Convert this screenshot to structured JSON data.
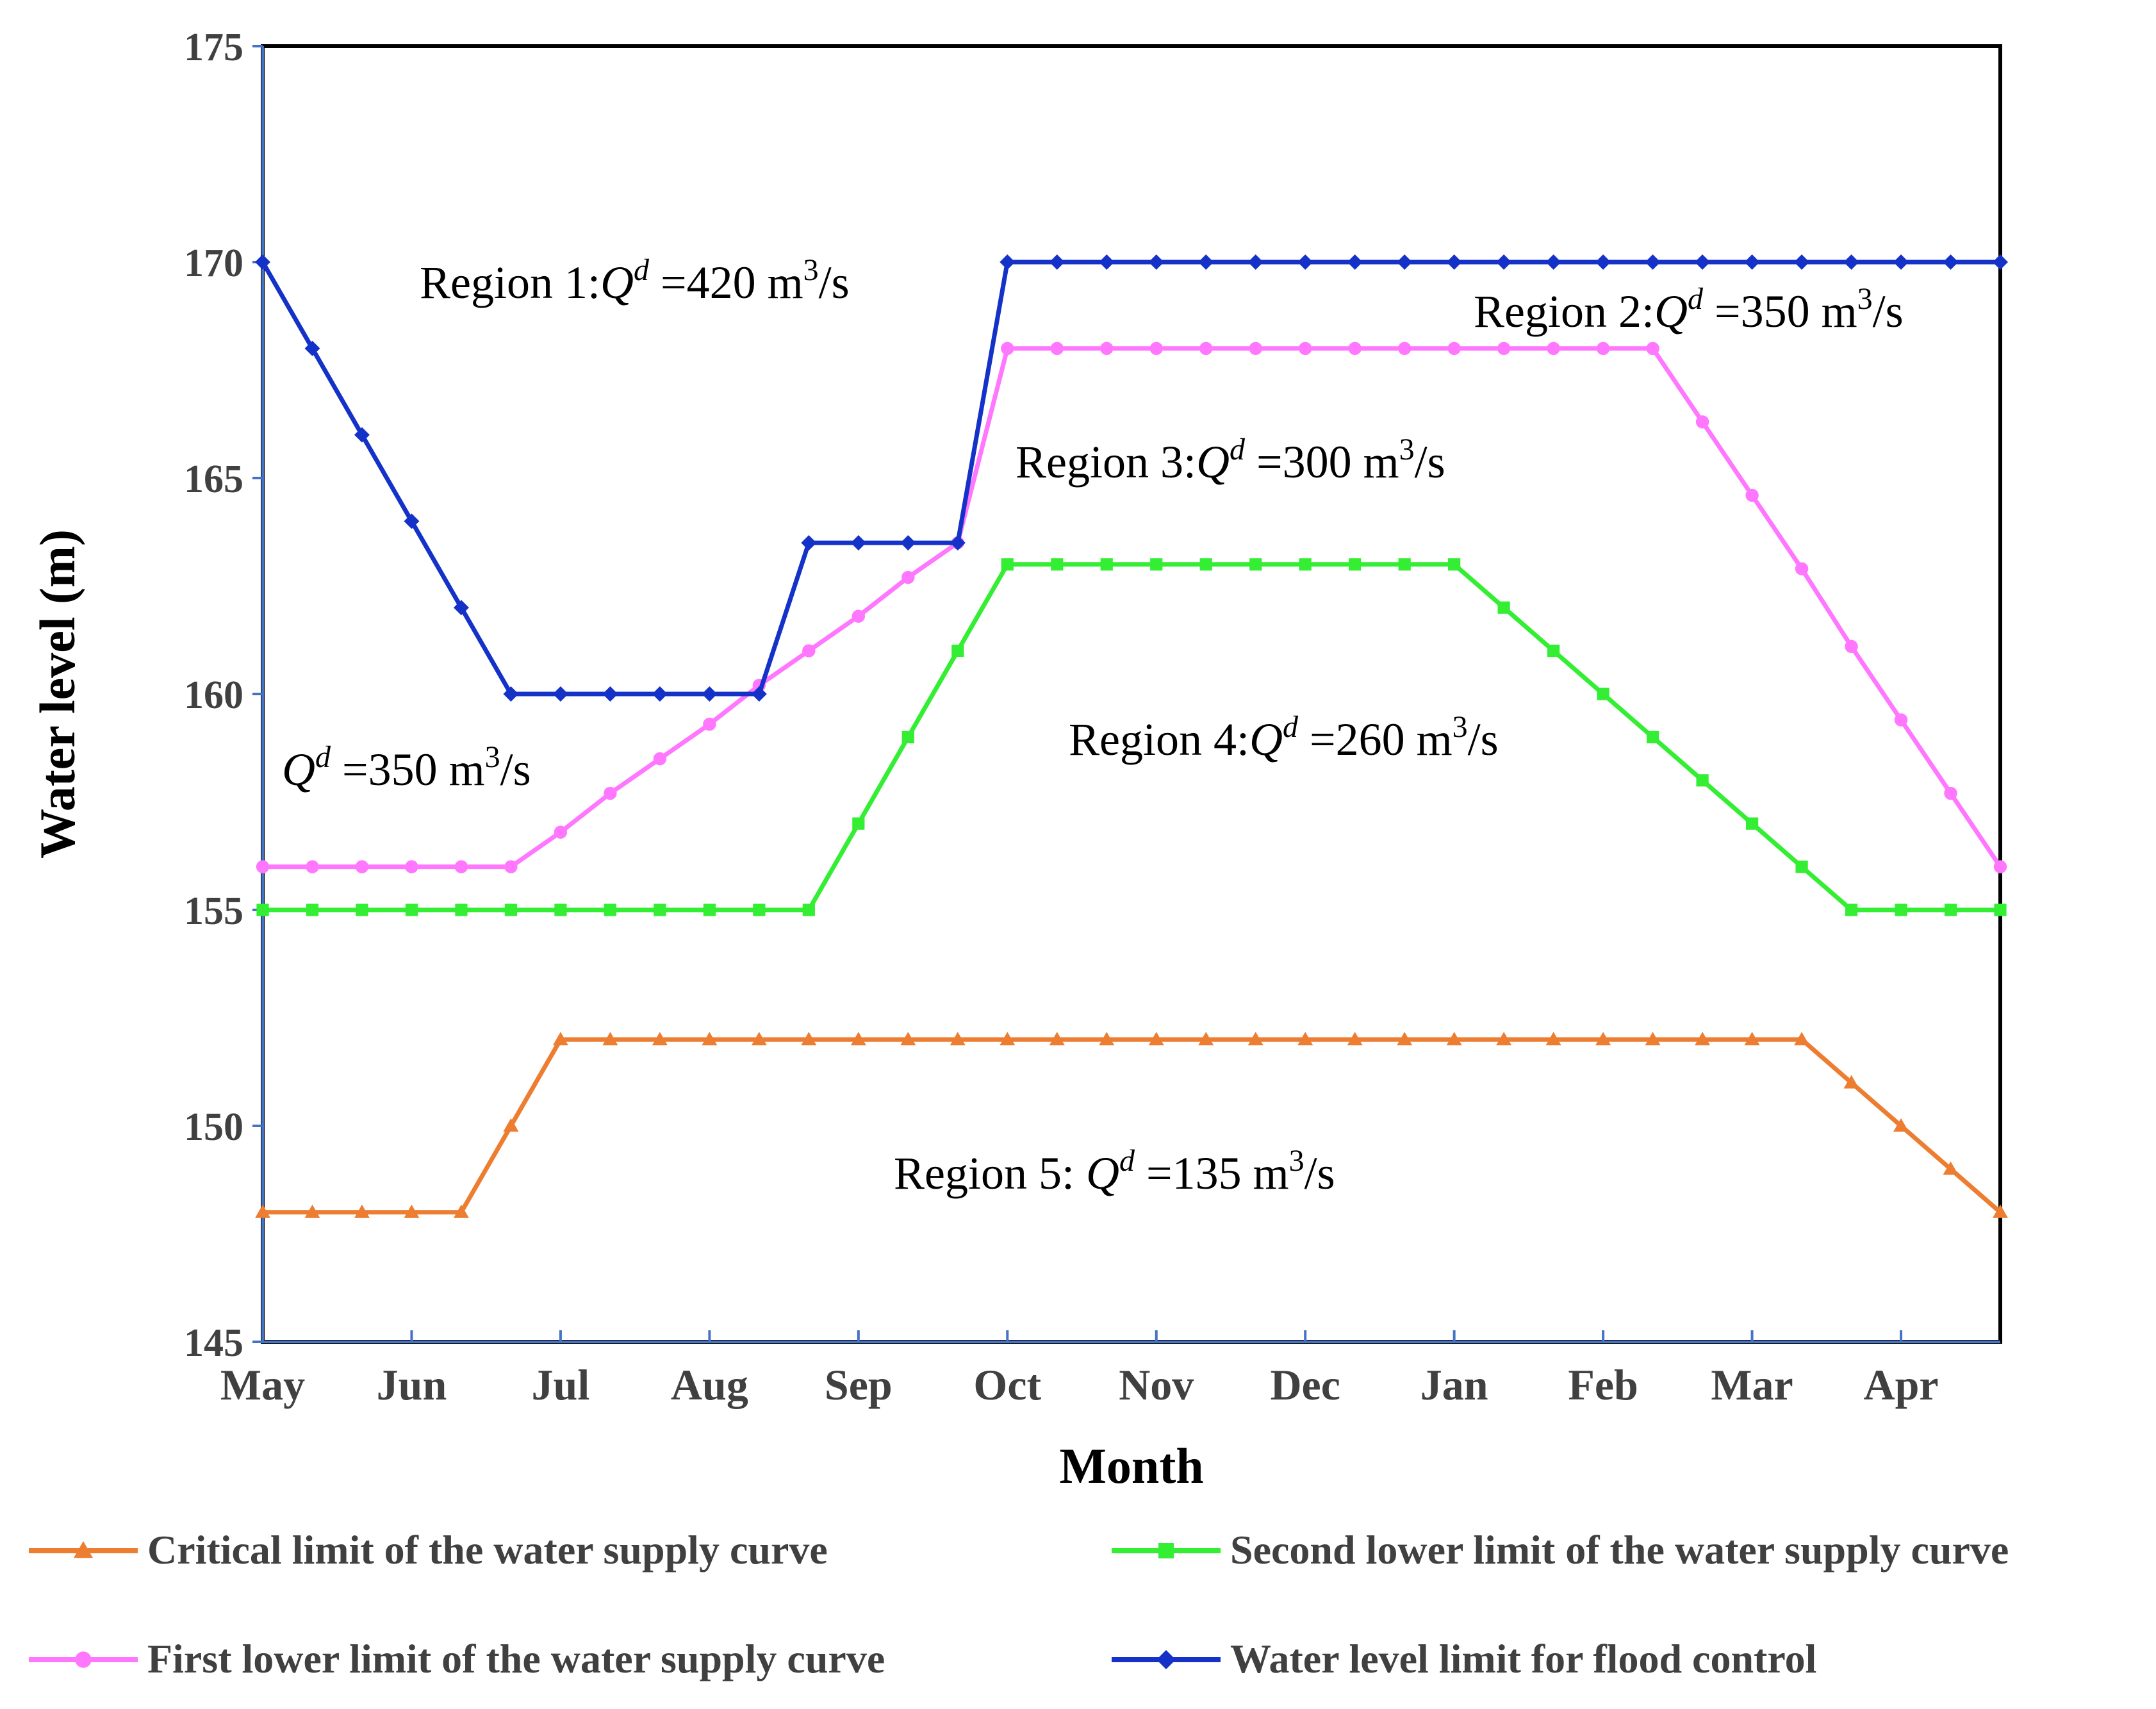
{
  "chart_data": {
    "type": "line",
    "title": "",
    "xlabel": "Month",
    "ylabel": "Water level (m)",
    "ylim": [
      145,
      175
    ],
    "yticks": [
      "145",
      "150",
      "155",
      "160",
      "165",
      "170",
      "175"
    ],
    "xlim": [
      0,
      35
    ],
    "categories": [
      "May",
      "Jun",
      "Jul",
      "Aug",
      "Sep",
      "Oct",
      "Nov",
      "Dec",
      "Jan",
      "Feb",
      "Mar",
      "Apr"
    ],
    "category_positions": [
      0,
      3,
      6,
      9,
      12,
      15,
      18,
      21,
      24,
      27,
      30,
      33
    ],
    "x": [
      0,
      1,
      2,
      3,
      4,
      5,
      6,
      7,
      8,
      9,
      10,
      11,
      12,
      13,
      14,
      15,
      16,
      17,
      18,
      19,
      20,
      21,
      22,
      23,
      24,
      25,
      26,
      27,
      28,
      29,
      30,
      31,
      32,
      33,
      34,
      35
    ],
    "series": [
      {
        "name": "Critical limit of the water supply curve",
        "color": "#ED7D31",
        "marker": "triangle",
        "values": [
          148,
          148,
          148,
          148,
          148,
          150,
          152,
          152,
          152,
          152,
          152,
          152,
          152,
          152,
          152,
          152,
          152,
          152,
          152,
          152,
          152,
          152,
          152,
          152,
          152,
          152,
          152,
          152,
          152,
          152,
          152,
          152,
          151,
          150,
          149,
          148
        ]
      },
      {
        "name": "Second lower limit of the water supply curve",
        "color": "#33EE33",
        "marker": "square",
        "values": [
          155,
          155,
          155,
          155,
          155,
          155,
          155,
          155,
          155,
          155,
          155,
          155,
          157,
          159,
          161,
          163,
          163,
          163,
          163,
          163,
          163,
          163,
          163,
          163,
          163,
          162,
          161,
          160,
          159,
          158,
          157,
          156,
          155,
          155,
          155,
          155
        ]
      },
      {
        "name": "First lower limit of the water supply curve",
        "color": "#FF77FF",
        "marker": "circle",
        "values": [
          156,
          156,
          156,
          156,
          156,
          156,
          156.8,
          157.7,
          158.5,
          159.3,
          160.2,
          161,
          161.8,
          162.7,
          163.5,
          168,
          168,
          168,
          168,
          168,
          168,
          168,
          168,
          168,
          168,
          168,
          168,
          168,
          168,
          166.3,
          164.6,
          162.9,
          161.1,
          159.4,
          157.7,
          156
        ]
      },
      {
        "name": "Water level limit for flood control",
        "color": "#1432C8",
        "marker": "diamond",
        "values": [
          170,
          168,
          166,
          164,
          162,
          160,
          160,
          160,
          160,
          160,
          160,
          163.5,
          163.5,
          163.5,
          163.5,
          170,
          170,
          170,
          170,
          170,
          170,
          170,
          170,
          170,
          170,
          170,
          170,
          170,
          170,
          170,
          170,
          170,
          170,
          170,
          170,
          170
        ]
      }
    ],
    "annotations": [
      {
        "label": "Region 1:",
        "q": "Q",
        "sup": "d",
        "value": "=420 m",
        "unit_sup": "3",
        "unit_tail": "/s"
      },
      {
        "label": "Region 2:",
        "q": "Q",
        "sup": "d",
        "value": "=350 m",
        "unit_sup": "3",
        "unit_tail": "/s"
      },
      {
        "label": "Region 3:",
        "q": "Q",
        "sup": "d",
        "value": "=300 m",
        "unit_sup": "3",
        "unit_tail": "/s"
      },
      {
        "label": "",
        "q": "Q",
        "sup": "d",
        "value": "=350 m",
        "unit_sup": "3",
        "unit_tail": "/s"
      },
      {
        "label": "Region 4:",
        "q": "Q",
        "sup": "d",
        "value": "=260 m",
        "unit_sup": "3",
        "unit_tail": "/s"
      },
      {
        "label": "Region 5: ",
        "q": "Q",
        "sup": "d",
        "value": "=135 m",
        "unit_sup": "3",
        "unit_tail": "/s"
      }
    ],
    "legend_position": "bottom"
  }
}
